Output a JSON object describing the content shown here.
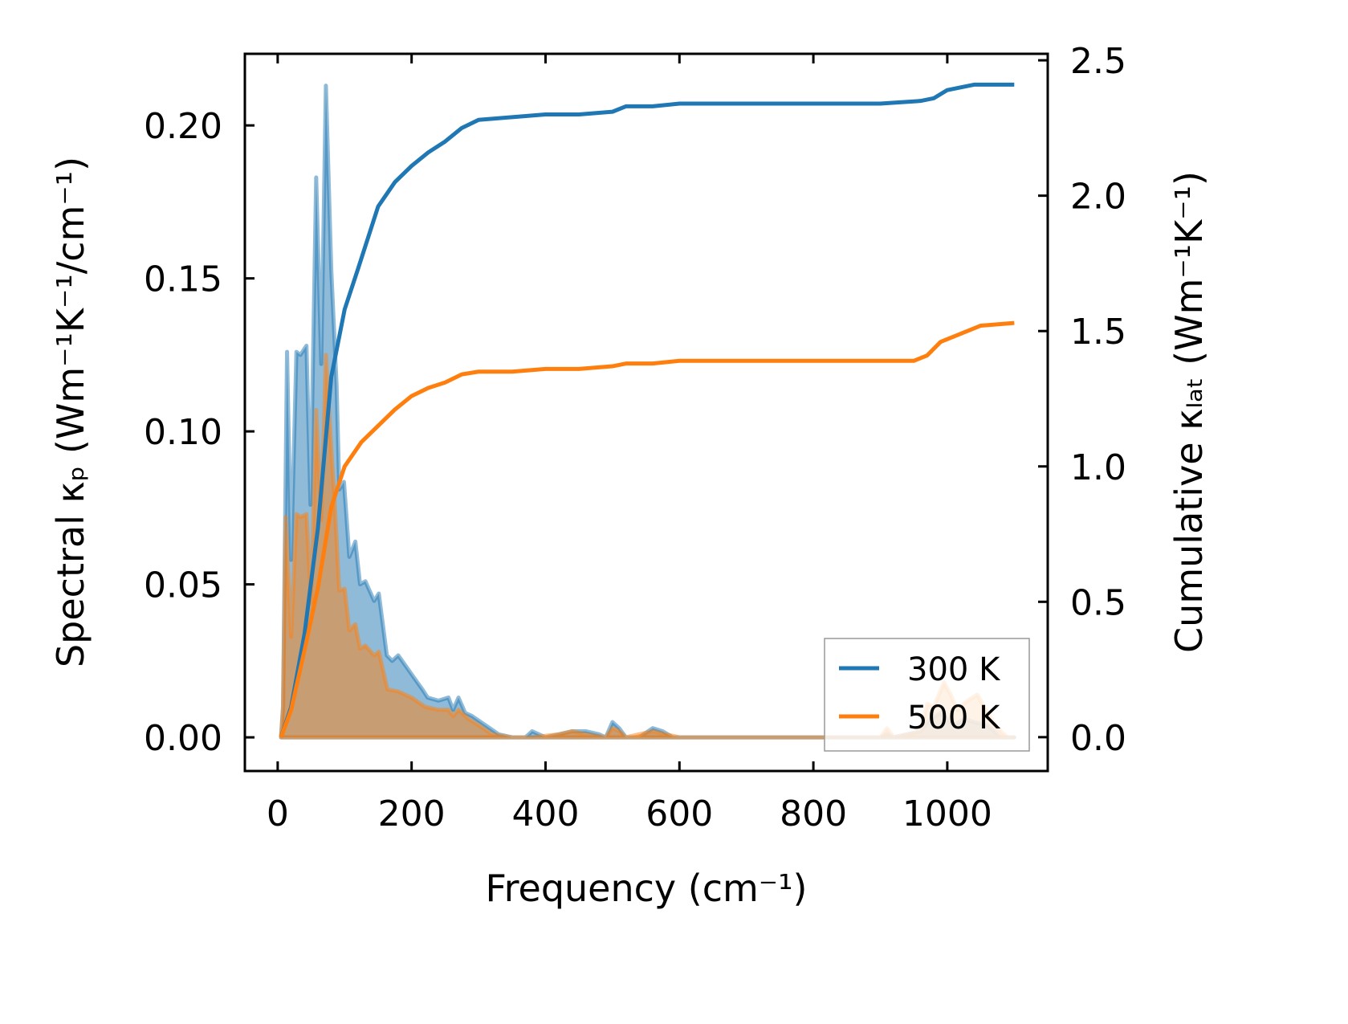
{
  "chart_data": {
    "type": "line",
    "title": "",
    "xlabel": "Frequency (cm⁻¹)",
    "ylabel_left": "Spectral κₚ (Wm⁻¹K⁻¹/cm⁻¹)",
    "ylabel_right": "Cumulative κₗₐₜ (Wm⁻¹K⁻¹)",
    "xlim": [
      -49,
      1150
    ],
    "ylim_left": [
      -0.011,
      0.2234
    ],
    "ylim_right": [
      -0.125,
      2.524
    ],
    "xticks": [
      0,
      200,
      400,
      600,
      800,
      1000
    ],
    "xtick_labels": [
      "0",
      "200",
      "400",
      "600",
      "800",
      "1000"
    ],
    "yticks_left": [
      0,
      0.05,
      0.1,
      0.15,
      0.2
    ],
    "ytick_labels_left": [
      "0.00",
      "0.05",
      "0.10",
      "0.15",
      "0.20"
    ],
    "yticks_right": [
      0,
      0.5,
      1.0,
      1.5,
      2.0,
      2.5
    ],
    "ytick_labels_right": [
      "0.0",
      "0.5",
      "1.0",
      "1.5",
      "2.0",
      "2.5"
    ],
    "grid": false,
    "legend_position": "bottom-right",
    "series": [
      {
        "name": "300 K",
        "color": "#1f77b4",
        "spectral": {
          "x": [
            5,
            8,
            14,
            20,
            28,
            34,
            43,
            49,
            57.5,
            65,
            72,
            80,
            88,
            92,
            99,
            107,
            116,
            123,
            131,
            144,
            151,
            163,
            171,
            180,
            202,
            216,
            224,
            240,
            255,
            262,
            270,
            280,
            290,
            310,
            330,
            350,
            370,
            380,
            390,
            400,
            420,
            440,
            460,
            480,
            490,
            500,
            510,
            520,
            540,
            560,
            575,
            590,
            600,
            700,
            800,
            900,
            910,
            920,
            960,
            975,
            990,
            1010,
            1025,
            1040,
            1060,
            1080,
            1100
          ],
          "y": [
            0,
            0.01,
            0.126,
            0.058,
            0.126,
            0.125,
            0.128,
            0.076,
            0.183,
            0.122,
            0.213,
            0.153,
            0.115,
            0.081,
            0.0835,
            0.059,
            0.064,
            0.05,
            0.051,
            0.0446,
            0.047,
            0.0268,
            0.025,
            0.0268,
            0.02,
            0.0157,
            0.013,
            0.012,
            0.013,
            0.009,
            0.013,
            0.008,
            0.007,
            0.004,
            0.001,
            0,
            0,
            0.002,
            0.001,
            0,
            0.001,
            0.002,
            0.002,
            0.001,
            0,
            0.005,
            0.003,
            0,
            0,
            0.003,
            0.002,
            0,
            0,
            0,
            0,
            0,
            0.001,
            0,
            0.002,
            0.006,
            0.008,
            0.004,
            0.006,
            0.005,
            0.004,
            0,
            0
          ]
        },
        "cumulative": {
          "x": [
            5,
            20,
            40,
            60,
            80,
            100,
            120,
            150,
            175,
            200,
            225,
            250,
            275,
            300,
            350,
            400,
            450,
            500,
            520,
            560,
            600,
            700,
            800,
            900,
            960,
            980,
            1000,
            1020,
            1040,
            1050,
            1100
          ],
          "y": [
            0,
            0.11,
            0.38,
            0.77,
            1.33,
            1.58,
            1.73,
            1.96,
            2.05,
            2.11,
            2.16,
            2.2,
            2.25,
            2.28,
            2.29,
            2.3,
            2.3,
            2.31,
            2.33,
            2.33,
            2.34,
            2.34,
            2.34,
            2.34,
            2.35,
            2.36,
            2.39,
            2.4,
            2.41,
            2.41,
            2.41
          ]
        }
      },
      {
        "name": "500 K",
        "color": "#ff7f0e",
        "spectral": {
          "x": [
            5,
            8,
            12,
            20,
            28,
            34,
            43,
            50,
            57.5,
            65,
            72,
            79,
            85,
            92,
            100,
            107,
            116,
            123,
            131,
            144,
            151,
            164,
            180,
            200,
            220,
            240,
            255,
            262,
            270,
            285,
            300,
            320,
            350,
            380,
            420,
            440,
            460,
            490,
            500,
            510,
            520,
            560,
            580,
            600,
            700,
            800,
            900,
            910,
            920,
            960,
            970,
            980,
            995,
            1005,
            1015,
            1030,
            1045,
            1060,
            1075,
            1090,
            1100
          ],
          "y": [
            0,
            0.01,
            0.072,
            0.033,
            0.073,
            0.072,
            0.073,
            0.044,
            0.107,
            0.071,
            0.125,
            0.098,
            0.077,
            0.048,
            0.0486,
            0.035,
            0.037,
            0.029,
            0.03,
            0.0268,
            0.028,
            0.0157,
            0.015,
            0.013,
            0.01,
            0.009,
            0.009,
            0.007,
            0.009,
            0.006,
            0.004,
            0.001,
            0,
            0,
            0.001,
            0.002,
            0.001,
            0,
            0.003,
            0.002,
            0,
            0.002,
            0.001,
            0,
            0,
            0,
            0,
            0.003,
            0,
            0.002,
            0.011,
            0.01,
            0.018,
            0.014,
            0.009,
            0.012,
            0.014,
            0.008,
            0.003,
            0,
            0
          ]
        },
        "cumulative": {
          "x": [
            5,
            20,
            40,
            60,
            80,
            100,
            125,
            150,
            175,
            200,
            225,
            250,
            275,
            300,
            350,
            400,
            450,
            500,
            520,
            560,
            600,
            700,
            800,
            900,
            950,
            970,
            990,
            1010,
            1030,
            1050,
            1100
          ],
          "y": [
            0,
            0.1,
            0.32,
            0.55,
            0.85,
            1.0,
            1.09,
            1.15,
            1.21,
            1.26,
            1.29,
            1.31,
            1.34,
            1.35,
            1.35,
            1.36,
            1.36,
            1.37,
            1.38,
            1.38,
            1.39,
            1.39,
            1.39,
            1.39,
            1.39,
            1.41,
            1.46,
            1.48,
            1.5,
            1.52,
            1.53
          ]
        }
      }
    ]
  }
}
